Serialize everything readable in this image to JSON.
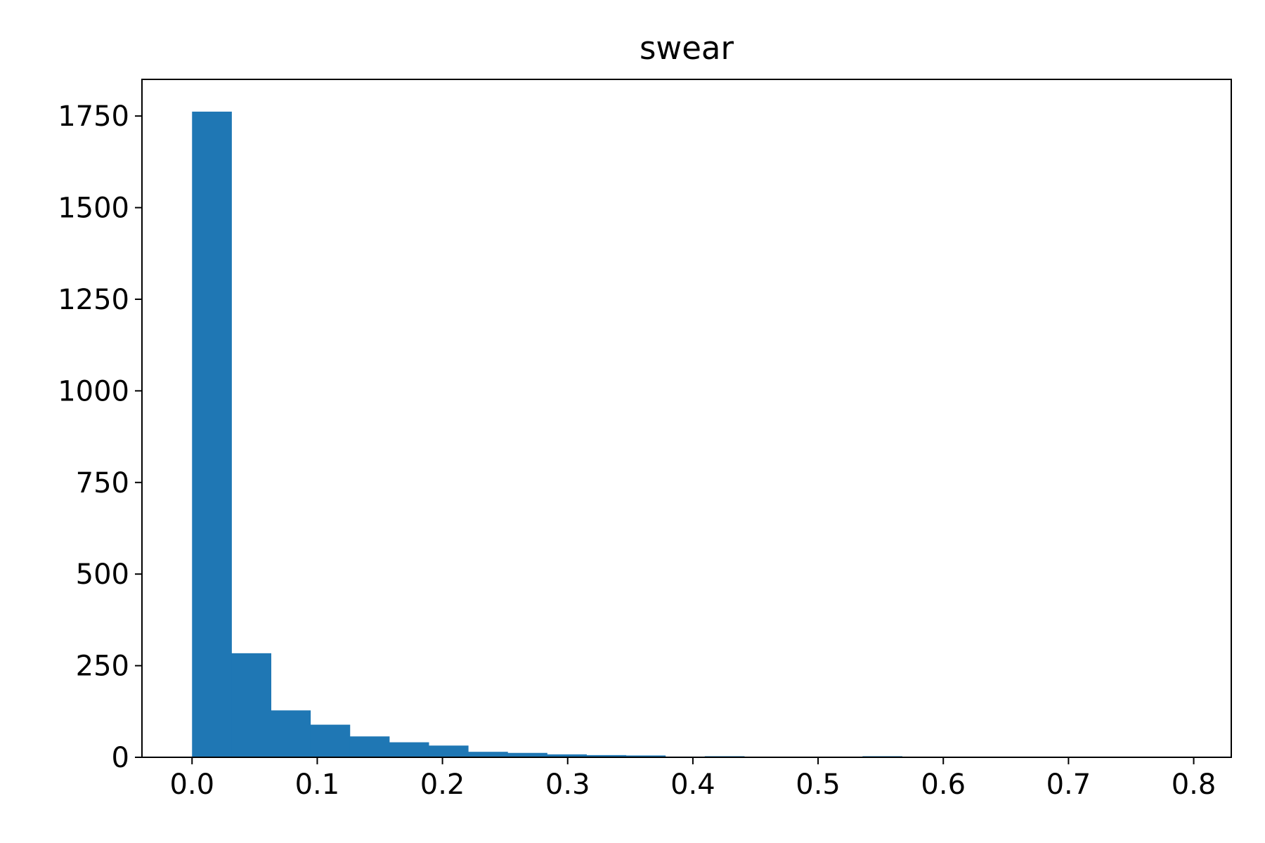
{
  "chart_data": {
    "type": "bar",
    "title": "swear",
    "xlabel": "",
    "ylabel": "",
    "bin_edges": [
      0.0,
      0.0315,
      0.063,
      0.0945,
      0.126,
      0.1575,
      0.189,
      0.2205,
      0.252,
      0.2835,
      0.315,
      0.3465,
      0.378,
      0.4095,
      0.441,
      0.4725,
      0.504,
      0.5355,
      0.567,
      0.5985,
      0.63,
      0.6615,
      0.693,
      0.7245,
      0.756,
      0.7875
    ],
    "values": [
      1762,
      284,
      128,
      89,
      57,
      41,
      32,
      15,
      12,
      8,
      6,
      5,
      2,
      3,
      1,
      1,
      1,
      3,
      1,
      0,
      0,
      0,
      0,
      0,
      1
    ],
    "xlim": [
      -0.04,
      0.83
    ],
    "ylim": [
      0,
      1850
    ],
    "x_ticks": [
      0.0,
      0.1,
      0.2,
      0.3,
      0.4,
      0.5,
      0.6,
      0.7,
      0.8
    ],
    "x_tick_labels": [
      "0.0",
      "0.1",
      "0.2",
      "0.3",
      "0.4",
      "0.5",
      "0.6",
      "0.7",
      "0.8"
    ],
    "y_ticks": [
      0,
      250,
      500,
      750,
      1000,
      1250,
      1500,
      1750
    ],
    "y_tick_labels": [
      "0",
      "250",
      "500",
      "750",
      "1000",
      "1250",
      "1500",
      "1750"
    ],
    "bar_color": "#1f77b4",
    "grid": false,
    "legend": "none"
  }
}
